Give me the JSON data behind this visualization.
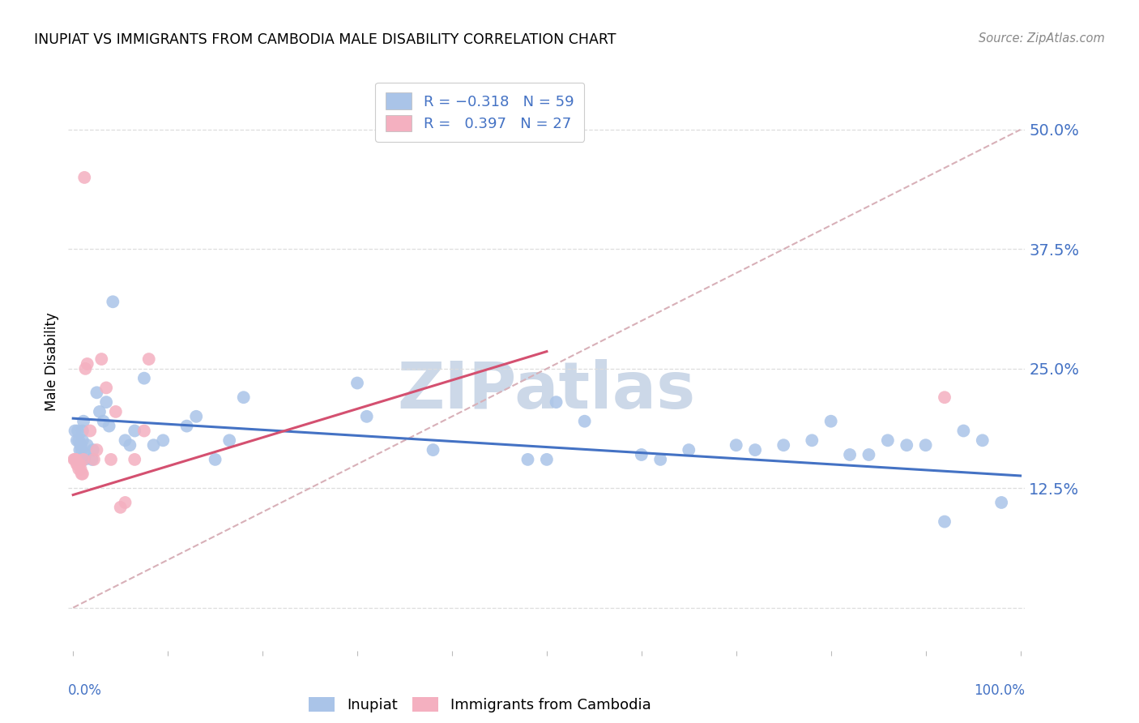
{
  "title": "INUPIAT VS IMMIGRANTS FROM CAMBODIA MALE DISABILITY CORRELATION CHART",
  "source": "Source: ZipAtlas.com",
  "ylabel": "Male Disability",
  "ytick_labels": [
    "",
    "12.5%",
    "25.0%",
    "37.5%",
    "50.0%"
  ],
  "ytick_values": [
    0.0,
    0.125,
    0.25,
    0.375,
    0.5
  ],
  "xlim": [
    -0.005,
    1.005
  ],
  "ylim": [
    -0.045,
    0.56
  ],
  "inupiat_color": "#aac4e8",
  "cambodia_color": "#f4b0c0",
  "blue_line_color": "#4472C4",
  "pink_line_color": "#d45070",
  "diag_line_color": "#d8b0b8",
  "watermark_color": "#ccd8e8",
  "blue_label_color": "#4472C4",
  "blue_line_y0": 0.198,
  "blue_line_y1": 0.138,
  "pink_line_x0": 0.0,
  "pink_line_x1": 0.5,
  "pink_line_y0": 0.118,
  "pink_line_y1": 0.268,
  "inupiat_x": [
    0.002,
    0.003,
    0.004,
    0.005,
    0.005,
    0.006,
    0.007,
    0.008,
    0.008,
    0.009,
    0.01,
    0.01,
    0.011,
    0.012,
    0.013,
    0.015,
    0.02,
    0.021,
    0.025,
    0.028,
    0.032,
    0.035,
    0.038,
    0.042,
    0.055,
    0.06,
    0.065,
    0.075,
    0.085,
    0.095,
    0.12,
    0.13,
    0.15,
    0.165,
    0.18,
    0.3,
    0.31,
    0.38,
    0.48,
    0.5,
    0.51,
    0.54,
    0.6,
    0.62,
    0.65,
    0.7,
    0.72,
    0.75,
    0.78,
    0.8,
    0.82,
    0.84,
    0.86,
    0.88,
    0.9,
    0.92,
    0.94,
    0.96,
    0.98
  ],
  "inupiat_y": [
    0.185,
    0.155,
    0.175,
    0.185,
    0.155,
    0.175,
    0.165,
    0.17,
    0.17,
    0.165,
    0.175,
    0.185,
    0.195,
    0.155,
    0.16,
    0.17,
    0.155,
    0.165,
    0.225,
    0.205,
    0.195,
    0.215,
    0.19,
    0.32,
    0.175,
    0.17,
    0.185,
    0.24,
    0.17,
    0.175,
    0.19,
    0.2,
    0.155,
    0.175,
    0.22,
    0.235,
    0.2,
    0.165,
    0.155,
    0.155,
    0.215,
    0.195,
    0.16,
    0.155,
    0.165,
    0.17,
    0.165,
    0.17,
    0.175,
    0.195,
    0.16,
    0.16,
    0.175,
    0.17,
    0.17,
    0.09,
    0.185,
    0.175,
    0.11
  ],
  "cambodia_x": [
    0.001,
    0.002,
    0.003,
    0.004,
    0.005,
    0.006,
    0.007,
    0.008,
    0.009,
    0.01,
    0.011,
    0.012,
    0.013,
    0.015,
    0.018,
    0.022,
    0.025,
    0.03,
    0.035,
    0.04,
    0.045,
    0.05,
    0.055,
    0.065,
    0.075,
    0.08,
    0.92
  ],
  "cambodia_y": [
    0.155,
    0.155,
    0.155,
    0.15,
    0.15,
    0.145,
    0.15,
    0.145,
    0.14,
    0.14,
    0.155,
    0.45,
    0.25,
    0.255,
    0.185,
    0.155,
    0.165,
    0.26,
    0.23,
    0.155,
    0.205,
    0.105,
    0.11,
    0.155,
    0.185,
    0.26,
    0.22
  ]
}
